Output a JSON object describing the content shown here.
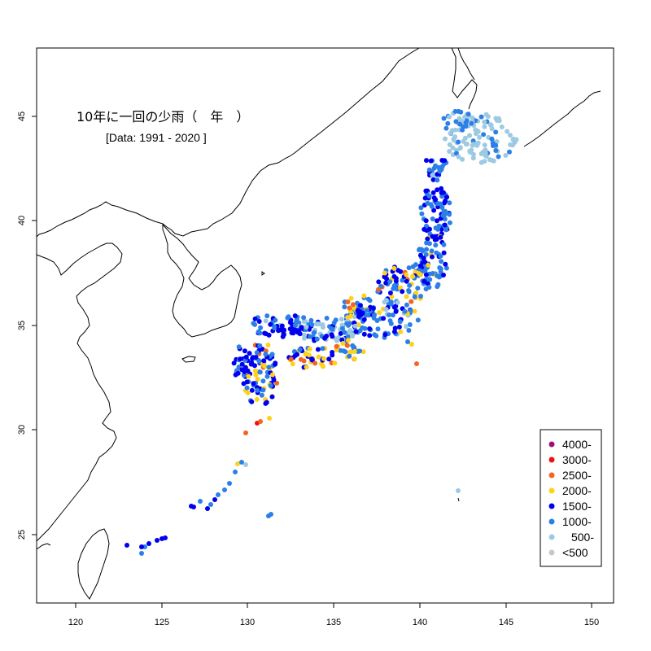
{
  "title": "10年に一回の少雨（　年　）",
  "subtitle": "[Data: 1991 - 2020 ]",
  "axes": {
    "x_ticks": [
      "120",
      "125",
      "130",
      "135",
      "140",
      "145",
      "150"
    ],
    "y_ticks": [
      "25",
      "30",
      "35",
      "40",
      "45"
    ],
    "xlim": [
      117.8,
      151.2
    ],
    "ylim": [
      21.9,
      48.4
    ]
  },
  "legend": {
    "placement": "bottom-right",
    "items": [
      {
        "label": "4000-",
        "color": "#a0107a"
      },
      {
        "label": "3000-",
        "color": "#ee1111"
      },
      {
        "label": "2500-",
        "color": "#f26522"
      },
      {
        "label": "2000-",
        "color": "#ffd21a"
      },
      {
        "label": "1500-",
        "color": "#0000ee"
      },
      {
        "label": "1000-",
        "color": "#2d7fe8"
      },
      {
        "label": "500-",
        "color": "#9ecae1"
      },
      {
        "label": "<500",
        "color": "#c8c8c8"
      }
    ]
  },
  "colors": {
    "c500": "#9ecae1",
    "c1000": "#2d7fe8",
    "c1500": "#0000ee",
    "c2000": "#ffd21a",
    "c2500": "#f26522",
    "c3000": "#ee1111"
  }
}
